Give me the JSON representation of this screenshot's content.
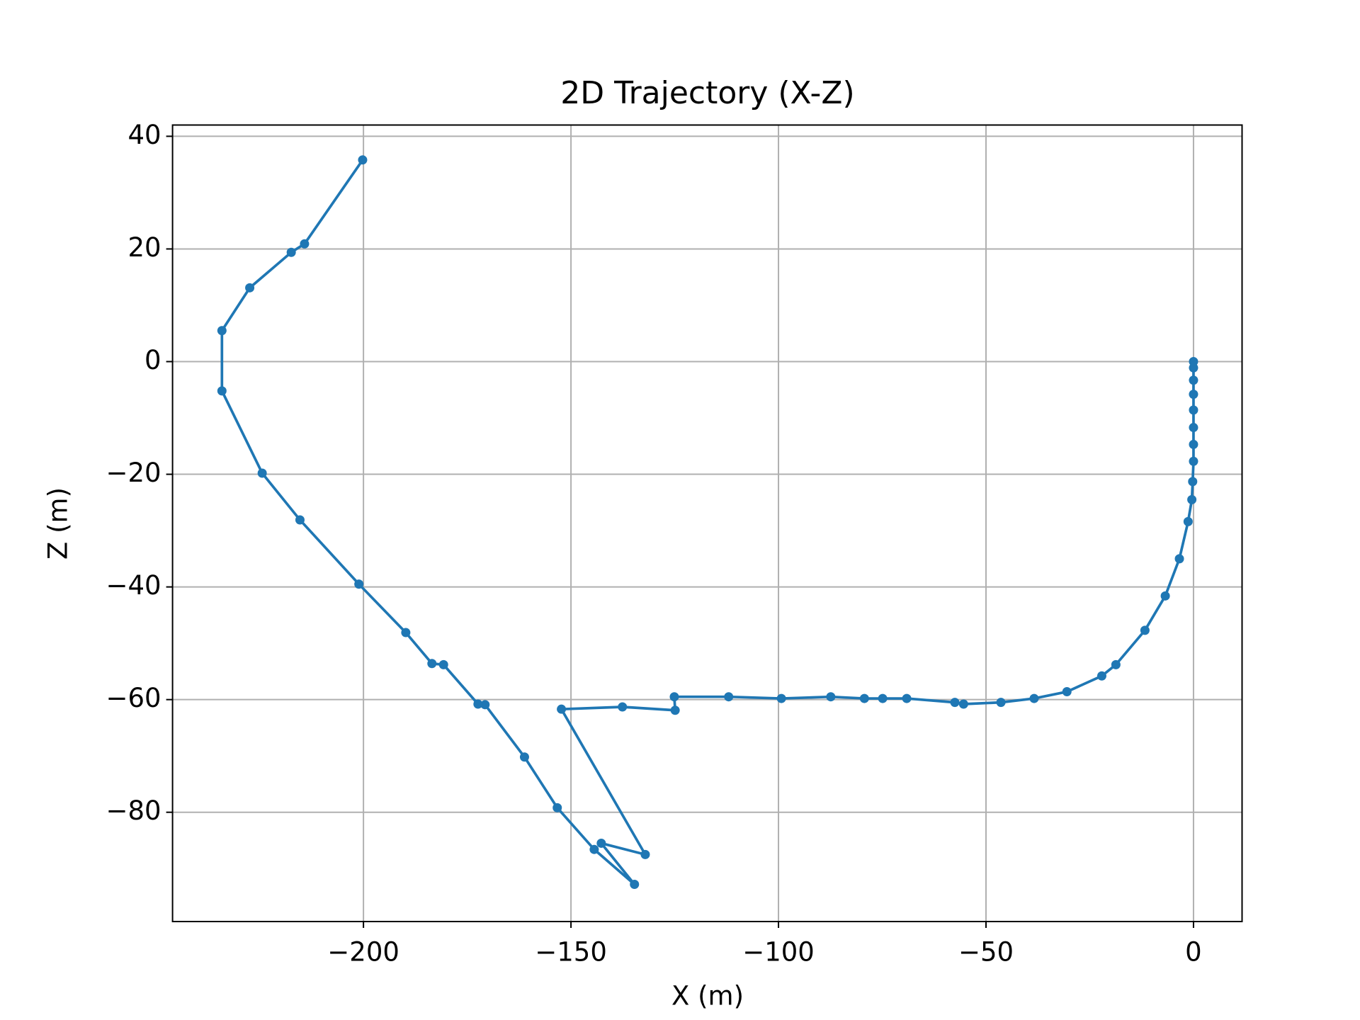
{
  "chart_data": {
    "type": "line",
    "title": "2D Trajectory (X-Z)",
    "x_label": "X (m)",
    "y_label": "Z (m)",
    "x": [
      0,
      0,
      0,
      0,
      0,
      0,
      0,
      0,
      -0.2,
      -0.4,
      -1.3,
      -3.4,
      -6.8,
      -11.7,
      -18.7,
      -22.1,
      -30.5,
      -38.4,
      -46.4,
      -55.4,
      -57.5,
      -69.1,
      -74.9,
      -79.3,
      -87.4,
      -99.3,
      -112.0,
      -125.1,
      -124.9,
      -137.6,
      -152.3,
      -132.1,
      -142.7,
      -134.7,
      -144.4,
      -153.3,
      -161.2,
      -170.7,
      -172.4,
      -180.7,
      -183.5,
      -189.8,
      -201.1,
      -215.3,
      -224.4,
      -234.1,
      -234.1,
      -227.4,
      -217.4,
      -214.2,
      -200.2
    ],
    "series": [
      {
        "color": "#1f77b4",
        "marker": "o",
        "values": [
          0,
          -1.1,
          -3.3,
          -5.8,
          -8.6,
          -11.7,
          -14.7,
          -17.7,
          -21.3,
          -24.5,
          -28.4,
          -35.0,
          -41.6,
          -47.7,
          -53.8,
          -55.8,
          -58.6,
          -59.8,
          -60.5,
          -60.8,
          -60.5,
          -59.8,
          -59.8,
          -59.8,
          -59.5,
          -59.8,
          -59.5,
          -59.5,
          -61.9,
          -61.3,
          -61.7,
          -87.5,
          -85.5,
          -92.8,
          -86.6,
          -79.2,
          -70.2,
          -60.9,
          -60.8,
          -53.8,
          -53.6,
          -48.1,
          -39.5,
          -28.1,
          -19.8,
          -5.2,
          5.5,
          13.1,
          19.4,
          20.9,
          35.8
        ]
      }
    ],
    "xlim": [
      -246.0,
      11.7
    ],
    "ylim": [
      -99.4,
      42.0
    ],
    "xticks": [
      {
        "value": -200,
        "label": "−200"
      },
      {
        "value": -150,
        "label": "−150"
      },
      {
        "value": -100,
        "label": "−100"
      },
      {
        "value": -50,
        "label": "−50"
      },
      0
    ],
    "yticks": [
      {
        "value": -80,
        "label": "−80"
      },
      {
        "value": -60,
        "label": "−60"
      },
      {
        "value": -40,
        "label": "−40"
      },
      {
        "value": -20,
        "label": "−20"
      },
      0,
      20,
      40
    ],
    "grid": true
  }
}
